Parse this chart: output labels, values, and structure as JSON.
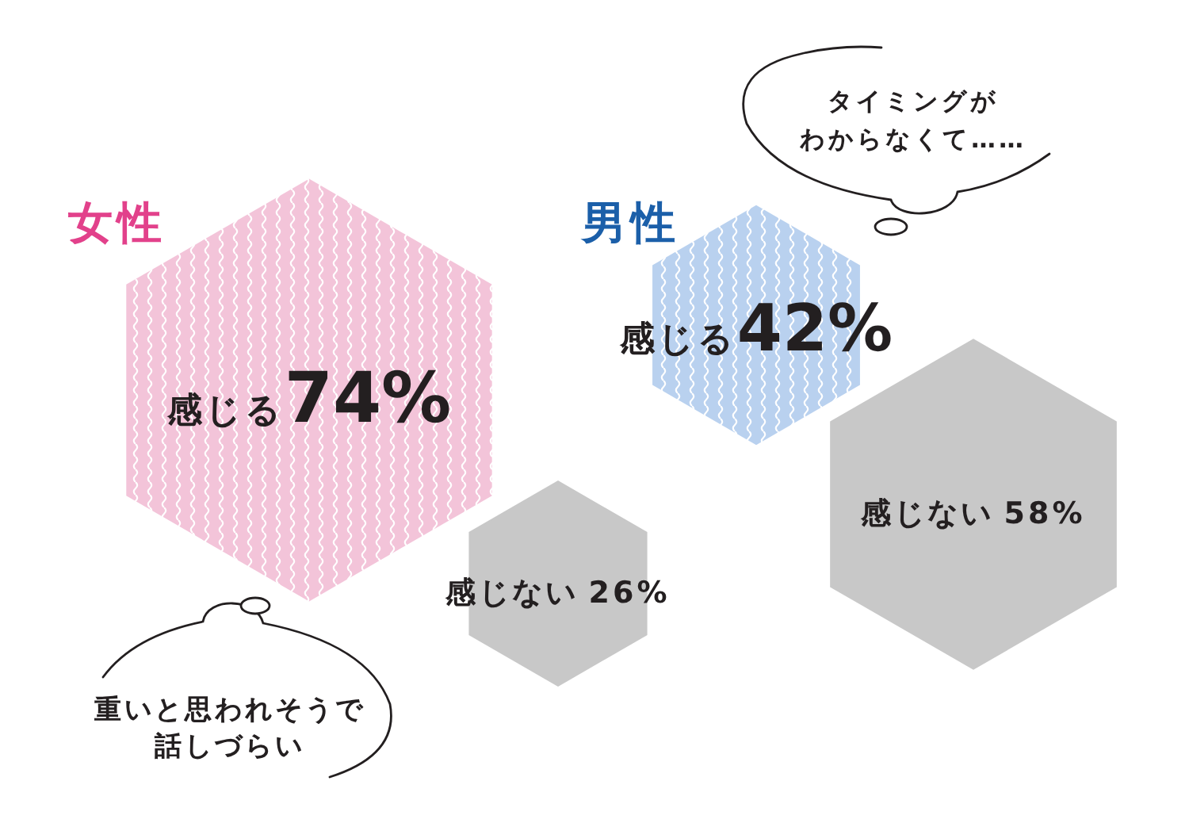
{
  "chart_data": [
    {
      "type": "other",
      "title": "女性",
      "categories": [
        "感じる",
        "感じない"
      ],
      "values": [
        74,
        26
      ],
      "value_labels": [
        "74%",
        "26%"
      ],
      "colors": [
        "#f3c4d9",
        "#c8c8c8"
      ],
      "annotations": [
        "重いと思われそうで話しづらい"
      ]
    },
    {
      "type": "other",
      "title": "男性",
      "categories": [
        "感じる",
        "感じない"
      ],
      "values": [
        42,
        58
      ],
      "value_labels": [
        "42%",
        "58%"
      ],
      "colors": [
        "#b9d1ef",
        "#c8c8c8"
      ],
      "annotations": [
        "タイミングがわからなくて……"
      ]
    }
  ]
}
